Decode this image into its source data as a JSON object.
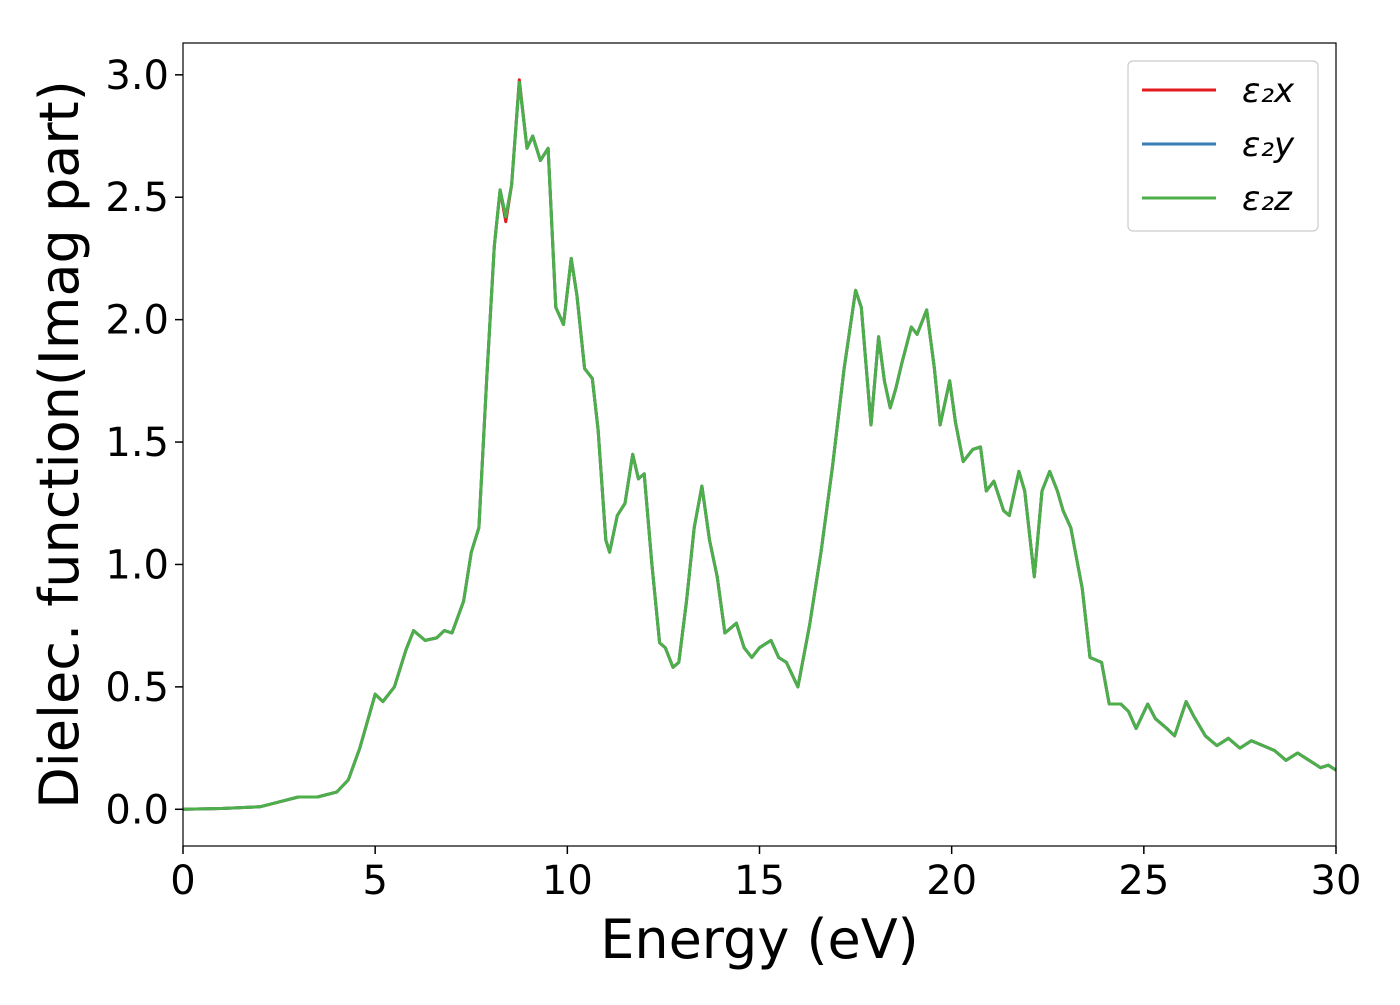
{
  "chart_data": {
    "type": "line",
    "title": "",
    "xlabel": "Energy (eV)",
    "ylabel": "Dielec. function(Imag part)",
    "xlim": [
      0,
      30
    ],
    "ylim": [
      -0.15,
      3.13
    ],
    "xticks": [
      0,
      5,
      10,
      15,
      20,
      25,
      30
    ],
    "xtick_labels": [
      "0",
      "5",
      "10",
      "15",
      "20",
      "25",
      "30"
    ],
    "yticks": [
      0.0,
      0.5,
      1.0,
      1.5,
      2.0,
      2.5,
      3.0
    ],
    "ytick_labels": [
      "0.0",
      "0.5",
      "1.0",
      "1.5",
      "2.0",
      "2.5",
      "3.0"
    ],
    "grid": false,
    "legend_position": "top-right",
    "x": [
      0,
      1,
      2,
      2.5,
      3,
      3.5,
      4,
      4.3,
      4.6,
      5.0,
      5.2,
      5.5,
      5.8,
      6.0,
      6.3,
      6.6,
      6.8,
      7.0,
      7.3,
      7.5,
      7.7,
      7.9,
      8.1,
      8.25,
      8.4,
      8.55,
      8.75,
      8.95,
      9.1,
      9.3,
      9.5,
      9.7,
      9.9,
      10.1,
      10.25,
      10.45,
      10.65,
      10.8,
      11.0,
      11.1,
      11.3,
      11.5,
      11.7,
      11.85,
      12.0,
      12.2,
      12.4,
      12.55,
      12.75,
      12.9,
      13.1,
      13.3,
      13.5,
      13.7,
      13.9,
      14.1,
      14.4,
      14.6,
      14.8,
      15.0,
      15.3,
      15.5,
      15.7,
      16.0,
      16.3,
      16.6,
      16.9,
      17.2,
      17.5,
      17.65,
      17.9,
      18.1,
      18.25,
      18.4,
      18.55,
      18.7,
      18.95,
      19.1,
      19.35,
      19.55,
      19.7,
      19.95,
      20.1,
      20.3,
      20.55,
      20.75,
      20.9,
      21.1,
      21.35,
      21.5,
      21.75,
      21.9,
      22.15,
      22.35,
      22.55,
      22.75,
      22.9,
      23.1,
      23.4,
      23.6,
      23.9,
      24.1,
      24.4,
      24.6,
      24.8,
      25.1,
      25.3,
      25.6,
      25.8,
      26.1,
      26.3,
      26.6,
      26.9,
      27.2,
      27.5,
      27.8,
      28.1,
      28.4,
      28.7,
      29.0,
      29.3,
      29.6,
      29.8,
      30.0
    ],
    "series": [
      {
        "name": "ε₂x",
        "color": "#e41a1c",
        "values": [
          0.0,
          0.003,
          0.01,
          0.03,
          0.05,
          0.05,
          0.07,
          0.12,
          0.25,
          0.47,
          0.44,
          0.5,
          0.65,
          0.73,
          0.69,
          0.7,
          0.73,
          0.72,
          0.85,
          1.05,
          1.15,
          1.75,
          2.3,
          2.53,
          2.4,
          2.55,
          2.98,
          2.7,
          2.75,
          2.65,
          2.7,
          2.05,
          1.98,
          2.25,
          2.1,
          1.8,
          1.76,
          1.55,
          1.1,
          1.05,
          1.2,
          1.25,
          1.45,
          1.35,
          1.37,
          1.0,
          0.68,
          0.66,
          0.58,
          0.6,
          0.85,
          1.15,
          1.32,
          1.1,
          0.95,
          0.72,
          0.76,
          0.66,
          0.62,
          0.66,
          0.69,
          0.62,
          0.6,
          0.5,
          0.75,
          1.05,
          1.4,
          1.8,
          2.12,
          2.05,
          1.57,
          1.93,
          1.75,
          1.64,
          1.72,
          1.82,
          1.97,
          1.94,
          2.04,
          1.8,
          1.57,
          1.75,
          1.58,
          1.42,
          1.47,
          1.48,
          1.3,
          1.34,
          1.22,
          1.2,
          1.38,
          1.3,
          0.95,
          1.3,
          1.38,
          1.3,
          1.22,
          1.15,
          0.9,
          0.62,
          0.6,
          0.43,
          0.43,
          0.4,
          0.33,
          0.43,
          0.37,
          0.33,
          0.3,
          0.44,
          0.38,
          0.3,
          0.26,
          0.29,
          0.25,
          0.28,
          0.26,
          0.24,
          0.2,
          0.23,
          0.2,
          0.17,
          0.18,
          0.16
        ]
      },
      {
        "name": "ε₂y",
        "color": "#377eb8",
        "values": [
          0.0,
          0.003,
          0.01,
          0.03,
          0.05,
          0.05,
          0.07,
          0.12,
          0.25,
          0.47,
          0.44,
          0.5,
          0.65,
          0.73,
          0.69,
          0.7,
          0.73,
          0.72,
          0.85,
          1.05,
          1.15,
          1.75,
          2.3,
          2.53,
          2.42,
          2.55,
          2.97,
          2.7,
          2.75,
          2.65,
          2.7,
          2.05,
          1.98,
          2.25,
          2.1,
          1.8,
          1.76,
          1.55,
          1.1,
          1.05,
          1.2,
          1.25,
          1.45,
          1.35,
          1.37,
          1.0,
          0.68,
          0.66,
          0.58,
          0.6,
          0.85,
          1.15,
          1.32,
          1.1,
          0.95,
          0.72,
          0.76,
          0.66,
          0.62,
          0.66,
          0.69,
          0.62,
          0.6,
          0.5,
          0.75,
          1.05,
          1.4,
          1.8,
          2.12,
          2.05,
          1.57,
          1.93,
          1.75,
          1.64,
          1.72,
          1.82,
          1.97,
          1.94,
          2.04,
          1.8,
          1.57,
          1.75,
          1.58,
          1.42,
          1.47,
          1.48,
          1.3,
          1.34,
          1.22,
          1.2,
          1.38,
          1.3,
          0.95,
          1.3,
          1.38,
          1.3,
          1.22,
          1.15,
          0.9,
          0.62,
          0.6,
          0.43,
          0.43,
          0.4,
          0.33,
          0.43,
          0.37,
          0.33,
          0.3,
          0.44,
          0.38,
          0.3,
          0.26,
          0.29,
          0.25,
          0.28,
          0.26,
          0.24,
          0.2,
          0.23,
          0.2,
          0.17,
          0.18,
          0.16
        ]
      },
      {
        "name": "ε₂z",
        "color": "#4daf4a",
        "values": [
          0.0,
          0.003,
          0.01,
          0.03,
          0.05,
          0.05,
          0.07,
          0.12,
          0.25,
          0.47,
          0.44,
          0.5,
          0.65,
          0.73,
          0.69,
          0.7,
          0.73,
          0.72,
          0.85,
          1.05,
          1.15,
          1.75,
          2.3,
          2.53,
          2.42,
          2.55,
          2.97,
          2.7,
          2.75,
          2.65,
          2.7,
          2.05,
          1.98,
          2.25,
          2.1,
          1.8,
          1.76,
          1.55,
          1.1,
          1.05,
          1.2,
          1.25,
          1.45,
          1.35,
          1.37,
          1.0,
          0.68,
          0.66,
          0.58,
          0.6,
          0.85,
          1.15,
          1.32,
          1.1,
          0.95,
          0.72,
          0.76,
          0.66,
          0.62,
          0.66,
          0.69,
          0.62,
          0.6,
          0.5,
          0.75,
          1.05,
          1.4,
          1.8,
          2.12,
          2.05,
          1.57,
          1.93,
          1.75,
          1.64,
          1.72,
          1.82,
          1.97,
          1.94,
          2.04,
          1.8,
          1.57,
          1.75,
          1.58,
          1.42,
          1.47,
          1.48,
          1.3,
          1.34,
          1.22,
          1.2,
          1.38,
          1.3,
          0.95,
          1.3,
          1.38,
          1.3,
          1.22,
          1.15,
          0.9,
          0.62,
          0.6,
          0.43,
          0.43,
          0.4,
          0.33,
          0.43,
          0.37,
          0.33,
          0.3,
          0.44,
          0.38,
          0.3,
          0.26,
          0.29,
          0.25,
          0.28,
          0.26,
          0.24,
          0.2,
          0.23,
          0.2,
          0.17,
          0.18,
          0.16
        ]
      }
    ]
  }
}
